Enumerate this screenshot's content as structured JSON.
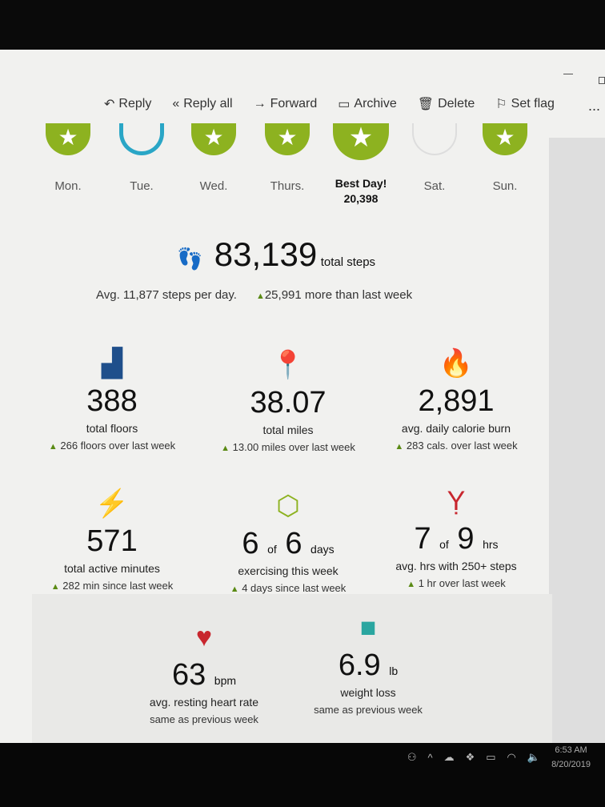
{
  "toolbar": {
    "reply": "Reply",
    "reply_all": "Reply all",
    "forward": "Forward",
    "archive": "Archive",
    "delete": "Delete",
    "set_flag": "Set flag",
    "more": "..."
  },
  "days": [
    {
      "label": "Mon.",
      "status": "goal-met"
    },
    {
      "label": "Tue.",
      "status": "partial"
    },
    {
      "label": "Wed.",
      "status": "goal-met"
    },
    {
      "label": "Thurs.",
      "status": "goal-met"
    },
    {
      "label": "Best Day!",
      "value": "20,398",
      "status": "best"
    },
    {
      "label": "Sat.",
      "status": "low"
    },
    {
      "label": "Sun.",
      "status": "goal-met"
    }
  ],
  "steps": {
    "total": "83,139",
    "unit": "total steps",
    "avg": "Avg. 11,877 steps per day.",
    "delta": "25,991 more than last week"
  },
  "stats": [
    {
      "icon": "stairs-icon",
      "value": "388",
      "label": "total floors",
      "delta": "266 floors over last week",
      "color": "#1f4f8b"
    },
    {
      "icon": "map-pin-icon",
      "value": "38.07",
      "label": "total miles",
      "delta": "13.00 miles over last week",
      "color": "#3a8fd6"
    },
    {
      "icon": "flame-icon",
      "value": "2,891",
      "label": "avg. daily calorie burn",
      "delta": "283 cals. over last week",
      "color": "#e86d1f"
    },
    {
      "icon": "lightning-icon",
      "value": "571",
      "label": "total active minutes",
      "delta": "282 min since last week",
      "color": "#f2a818"
    },
    {
      "icon": "exercise-icon",
      "value": "6",
      "of": "of",
      "total": "6",
      "unit": "days",
      "label": "exercising this week",
      "delta": "4 days since last week",
      "color": "#8db220"
    },
    {
      "icon": "person-stretch-icon",
      "value": "7",
      "of": "of",
      "total": "9",
      "unit": "hrs",
      "label": "avg. hrs with 250+ steps",
      "delta": "1 hr over last week",
      "color": "#c8262e"
    },
    {
      "icon": "heart-icon",
      "value": "63",
      "unit": "bpm",
      "label": "avg. resting heart rate",
      "delta": "same as previous week",
      "color": "#c8262e"
    },
    {
      "icon": "scale-icon",
      "value": "6.9",
      "unit": "lb",
      "label": "weight loss",
      "delta": "same as previous week",
      "color": "#2aa6a0"
    }
  ],
  "taskbar": {
    "time": "6:53 AM",
    "date": "8/20/2019"
  }
}
